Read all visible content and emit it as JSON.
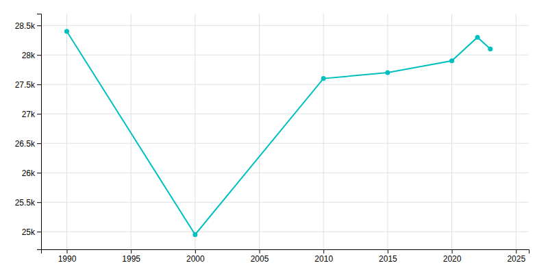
{
  "chart_data": {
    "type": "line",
    "x": [
      1990,
      2000,
      2010,
      2015,
      2020,
      2022,
      2023
    ],
    "values": [
      28400,
      24950,
      27600,
      27700,
      27900,
      28300,
      28100
    ],
    "color": "#00BFBF",
    "marker": "circle",
    "xlim": [
      1988,
      2026
    ],
    "xticks": [
      1990,
      1995,
      2000,
      2005,
      2010,
      2015,
      2020,
      2025
    ],
    "ylim": [
      24700,
      28700
    ],
    "yticks": [
      {
        "value": 25000,
        "label": "25k"
      },
      {
        "value": 25500,
        "label": "25.5k"
      },
      {
        "value": 26000,
        "label": "26k"
      },
      {
        "value": 26500,
        "label": "26.5k"
      },
      {
        "value": 27000,
        "label": "27k"
      },
      {
        "value": 27500,
        "label": "27.5k"
      },
      {
        "value": 28000,
        "label": "28k"
      },
      {
        "value": 28500,
        "label": "28.5k"
      }
    ],
    "grid": true
  }
}
